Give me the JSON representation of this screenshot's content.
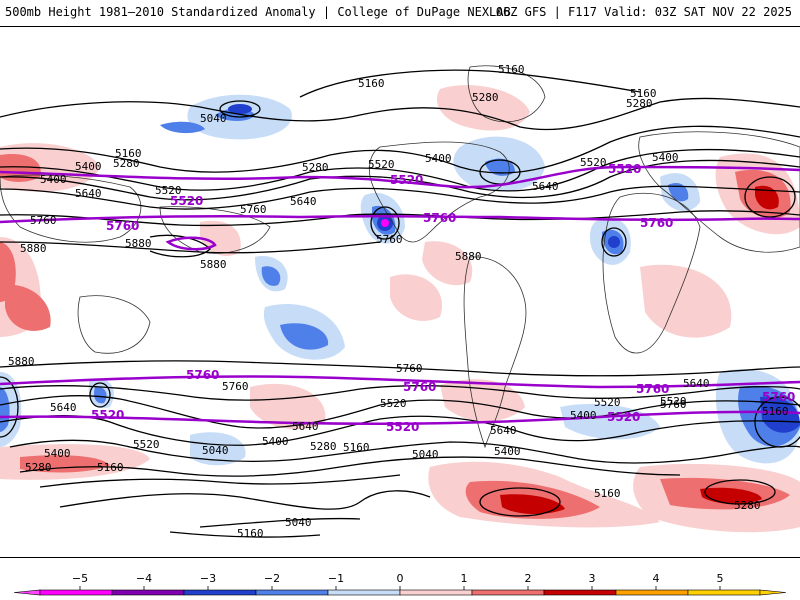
{
  "header": {
    "left_title": "500mb Height 1981–2010 Standardized Anomaly | College of DuPage NEXLAB",
    "right_title": "06Z GFS | F117 Valid: 03Z SAT NOV 22 2025"
  },
  "colors": {
    "purple_contour": "#9900cc",
    "black_contour": "#000000",
    "land_outline": "#333333"
  },
  "anomaly_colors": [
    {
      "level": -5,
      "color": "#ff00ff"
    },
    {
      "level": -4,
      "color": "#8000b0"
    },
    {
      "level": -3,
      "color": "#1f3fcc"
    },
    {
      "level": -2,
      "color": "#4f7fe8"
    },
    {
      "level": -1,
      "color": "#c6dcf7"
    },
    {
      "level": 0,
      "color": "#ffffff"
    },
    {
      "level": 1,
      "color": "#f9cfcf"
    },
    {
      "level": 2,
      "color": "#ee6f6f"
    },
    {
      "level": 3,
      "color": "#c40000"
    },
    {
      "level": 4,
      "color": "#ffa000"
    },
    {
      "level": 5,
      "color": "#ffd000"
    }
  ],
  "colorbar": {
    "ticks": [
      "−5",
      "−4",
      "−3",
      "−2",
      "−1",
      "0",
      "1",
      "2",
      "3",
      "4",
      "5"
    ]
  },
  "contour_labels": {
    "black": [
      "5160",
      "5160",
      "5280",
      "5160",
      "5280",
      "5040",
      "5160",
      "5280",
      "5400",
      "5520",
      "5400",
      "5280",
      "5520",
      "5400",
      "5520",
      "5400",
      "5640",
      "5640",
      "5760",
      "5760",
      "5640",
      "5880",
      "5880",
      "5880",
      "5880",
      "5760",
      "5880",
      "5760",
      "5760",
      "5640",
      "5520",
      "5400",
      "5280",
      "5640",
      "5520",
      "5400",
      "5280",
      "5160",
      "5040",
      "5040",
      "5160",
      "5040",
      "5160",
      "5520",
      "5400",
      "5640",
      "5520",
      "5640",
      "5760",
      "5160",
      "5280",
      "5400",
      "5160"
    ],
    "purple": [
      "5520",
      "5520",
      "5520",
      "5760",
      "5760",
      "5760",
      "5760",
      "5760",
      "5760",
      "5760",
      "5520",
      "5520",
      "5520"
    ]
  }
}
